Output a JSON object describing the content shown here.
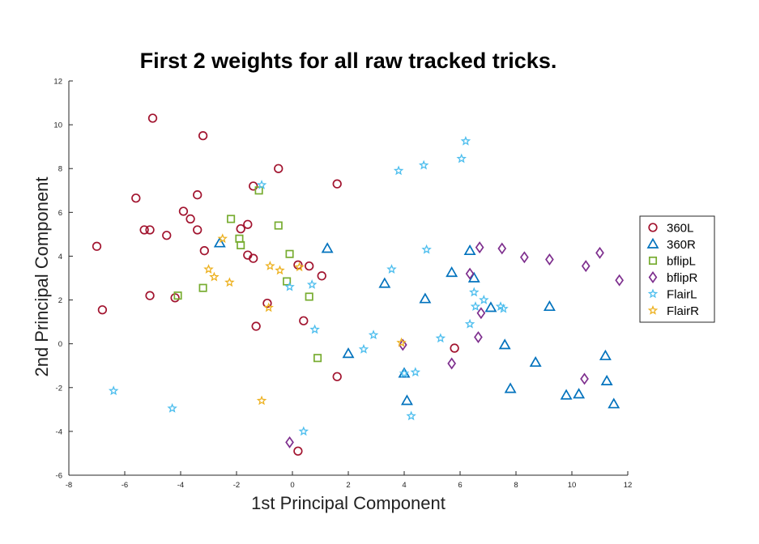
{
  "chart_data": {
    "type": "scatter",
    "title": "First 2 weights for all raw tracked tricks.",
    "xlabel": "1st Principal Component",
    "ylabel": "2nd Principal Component",
    "xlim": [
      -8,
      12
    ],
    "ylim": [
      -6,
      12
    ],
    "xticks": [
      -8,
      -6,
      -4,
      -2,
      0,
      2,
      4,
      6,
      8,
      10,
      12
    ],
    "yticks": [
      -6,
      -4,
      -2,
      0,
      2,
      4,
      6,
      8,
      10,
      12
    ],
    "grid": false,
    "legend_position": "right",
    "series": [
      {
        "name": "360L",
        "color": "#a2142f",
        "marker": "circle",
        "points": [
          [
            -5.0,
            10.3
          ],
          [
            -3.2,
            9.5
          ],
          [
            -0.5,
            8.0
          ],
          [
            1.6,
            7.3
          ],
          [
            -1.4,
            7.2
          ],
          [
            -3.4,
            6.8
          ],
          [
            -5.6,
            6.65
          ],
          [
            -3.9,
            6.05
          ],
          [
            -3.65,
            5.7
          ],
          [
            -1.6,
            5.45
          ],
          [
            -1.85,
            5.25
          ],
          [
            -3.4,
            5.2
          ],
          [
            -5.3,
            5.2
          ],
          [
            -5.1,
            5.2
          ],
          [
            -4.5,
            4.95
          ],
          [
            -7.0,
            4.45
          ],
          [
            -3.15,
            4.25
          ],
          [
            -1.6,
            4.05
          ],
          [
            -1.4,
            3.9
          ],
          [
            0.6,
            3.55
          ],
          [
            0.2,
            3.6
          ],
          [
            1.05,
            3.1
          ],
          [
            -5.1,
            2.2
          ],
          [
            -4.2,
            2.1
          ],
          [
            -0.9,
            1.85
          ],
          [
            -6.8,
            1.55
          ],
          [
            0.4,
            1.05
          ],
          [
            -1.3,
            0.8
          ],
          [
            5.8,
            -0.2
          ],
          [
            1.6,
            -1.5
          ],
          [
            0.2,
            -4.9
          ]
        ]
      },
      {
        "name": "360R",
        "color": "#0072bd",
        "marker": "triangle",
        "points": [
          [
            -2.6,
            4.6
          ],
          [
            1.25,
            4.35
          ],
          [
            6.35,
            4.25
          ],
          [
            5.7,
            3.25
          ],
          [
            6.5,
            3.0
          ],
          [
            3.3,
            2.75
          ],
          [
            4.75,
            2.05
          ],
          [
            7.1,
            1.65
          ],
          [
            9.2,
            1.7
          ],
          [
            7.6,
            -0.05
          ],
          [
            2.0,
            -0.45
          ],
          [
            11.2,
            -0.55
          ],
          [
            8.7,
            -0.85
          ],
          [
            4.0,
            -1.35
          ],
          [
            11.25,
            -1.7
          ],
          [
            7.8,
            -2.05
          ],
          [
            9.8,
            -2.35
          ],
          [
            10.25,
            -2.3
          ],
          [
            4.1,
            -2.6
          ],
          [
            11.5,
            -2.75
          ]
        ]
      },
      {
        "name": "bflipL",
        "color": "#77ac30",
        "marker": "square",
        "points": [
          [
            -1.2,
            7.0
          ],
          [
            -2.2,
            5.7
          ],
          [
            -0.5,
            5.4
          ],
          [
            -1.9,
            4.8
          ],
          [
            -1.85,
            4.5
          ],
          [
            -0.1,
            4.1
          ],
          [
            -0.2,
            2.85
          ],
          [
            -3.2,
            2.55
          ],
          [
            -4.1,
            2.2
          ],
          [
            0.6,
            2.15
          ],
          [
            0.9,
            -0.65
          ]
        ]
      },
      {
        "name": "bflipR",
        "color": "#7e2f8e",
        "marker": "diamond",
        "points": [
          [
            6.7,
            4.4
          ],
          [
            7.5,
            4.35
          ],
          [
            8.3,
            3.95
          ],
          [
            9.2,
            3.85
          ],
          [
            10.5,
            3.55
          ],
          [
            11.0,
            4.15
          ],
          [
            11.7,
            2.9
          ],
          [
            6.35,
            3.2
          ],
          [
            6.75,
            1.4
          ],
          [
            6.65,
            0.3
          ],
          [
            3.95,
            -0.05
          ],
          [
            5.7,
            -0.9
          ],
          [
            10.45,
            -1.6
          ],
          [
            -0.1,
            -4.5
          ]
        ]
      },
      {
        "name": "FlairL",
        "color": "#4dbeee",
        "marker": "star",
        "points": [
          [
            6.2,
            9.25
          ],
          [
            6.05,
            8.45
          ],
          [
            4.7,
            8.15
          ],
          [
            3.8,
            7.9
          ],
          [
            -1.1,
            7.25
          ],
          [
            4.8,
            4.3
          ],
          [
            3.55,
            3.4
          ],
          [
            -0.1,
            2.6
          ],
          [
            0.7,
            2.7
          ],
          [
            6.5,
            2.35
          ],
          [
            6.85,
            2.0
          ],
          [
            6.55,
            1.7
          ],
          [
            7.45,
            1.7
          ],
          [
            7.55,
            1.6
          ],
          [
            6.35,
            0.9
          ],
          [
            0.8,
            0.65
          ],
          [
            2.9,
            0.4
          ],
          [
            5.3,
            0.25
          ],
          [
            2.55,
            -0.25
          ],
          [
            4.0,
            -1.35
          ],
          [
            4.4,
            -1.3
          ],
          [
            -6.4,
            -2.15
          ],
          [
            -4.3,
            -2.95
          ],
          [
            4.25,
            -3.3
          ],
          [
            0.4,
            -4.0
          ]
        ]
      },
      {
        "name": "FlairR",
        "color": "#edb120",
        "marker": "star",
        "points": [
          [
            -2.5,
            4.8
          ],
          [
            -0.8,
            3.55
          ],
          [
            0.25,
            3.5
          ],
          [
            -0.45,
            3.35
          ],
          [
            -3.0,
            3.4
          ],
          [
            -2.8,
            3.05
          ],
          [
            -2.25,
            2.8
          ],
          [
            -0.85,
            1.65
          ],
          [
            3.9,
            0.05
          ],
          [
            -1.1,
            -2.6
          ]
        ]
      }
    ]
  }
}
